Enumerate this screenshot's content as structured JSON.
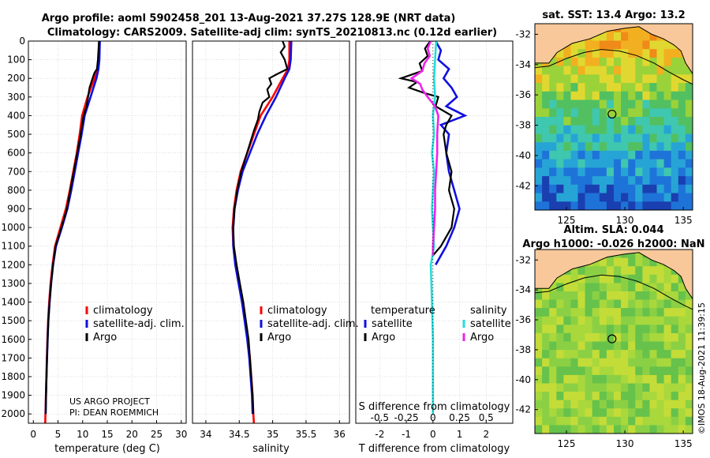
{
  "header": {
    "title_line1": "Argo profile: aoml 5902458_201 13-Aug-2021 37.27S 128.9E (NRT data)",
    "title_line2": "Climatology: CARS2009. Satellite-adj clim: synTS_20210813.nc (0.12d earlier)"
  },
  "credits": {
    "project": "US ARGO PROJECT",
    "pi": "PI: DEAN ROEMMICH",
    "imos_stamp": "©IMOS 18-Aug-2021 11:39:15"
  },
  "colors": {
    "climatology": "#ff0000",
    "satellite": "#1010e0",
    "argo": "#000000",
    "sat_salinity": "#22dddd",
    "argo_salinity": "#ee22ee",
    "land": "#f8c89a"
  },
  "chart_data": [
    {
      "id": "temperature",
      "type": "line",
      "xlabel": "temperature (deg C)",
      "ylabel": "",
      "xlim": [
        -1,
        31
      ],
      "xticks": [
        "0",
        "5",
        "10",
        "15",
        "20",
        "25",
        "30"
      ],
      "xtick_values": [
        0,
        5,
        10,
        15,
        20,
        25,
        30
      ],
      "ylim": [
        0,
        2050
      ],
      "yticks": [
        "0",
        "100",
        "200",
        "300",
        "400",
        "500",
        "600",
        "700",
        "800",
        "900",
        "1000",
        "1100",
        "1200",
        "1300",
        "1400",
        "1500",
        "1600",
        "1700",
        "1800",
        "1900",
        "2000"
      ],
      "ytick_values": [
        0,
        100,
        200,
        300,
        400,
        500,
        600,
        700,
        800,
        900,
        1000,
        1100,
        1200,
        1300,
        1400,
        1500,
        1600,
        1700,
        1800,
        1900,
        2000
      ],
      "legend": [
        "climatology",
        "satellite-adj. clim.",
        "Argo"
      ],
      "series": [
        {
          "name": "climatology",
          "color_key": "climatology",
          "depth": [
            0,
            100,
            150,
            200,
            300,
            400,
            500,
            600,
            700,
            800,
            900,
            1000,
            1100,
            1200,
            1300,
            1400,
            1500,
            1600,
            1700,
            1800,
            1900,
            2000,
            2050
          ],
          "values": [
            13.4,
            13.3,
            13.0,
            12.4,
            11.0,
            9.9,
            9.4,
            8.8,
            8.1,
            7.4,
            6.6,
            5.5,
            4.4,
            3.9,
            3.5,
            3.2,
            3.0,
            2.85,
            2.75,
            2.65,
            2.55,
            2.45,
            2.4
          ]
        },
        {
          "name": "satellite-adj. clim.",
          "color_key": "satellite",
          "depth": [
            0,
            100,
            150,
            200,
            300,
            400,
            500,
            600,
            700,
            800,
            900,
            1000,
            1100,
            1200,
            1300,
            1400,
            1500,
            1600,
            1700,
            1800,
            1900,
            2000
          ],
          "values": [
            13.5,
            13.4,
            13.2,
            12.8,
            11.6,
            10.4,
            9.8,
            9.1,
            8.4,
            7.7,
            6.9,
            5.8,
            4.6,
            4.0,
            3.6,
            3.3,
            3.05,
            2.9,
            2.78,
            2.67,
            2.57,
            2.5
          ]
        },
        {
          "name": "Argo",
          "color_key": "argo",
          "depth": [
            0,
            50,
            100,
            150,
            170,
            200,
            250,
            300,
            350,
            400,
            500,
            600,
            700,
            800,
            900,
            1000,
            1100,
            1200,
            1300,
            1400,
            1500,
            1600,
            1700,
            1800,
            1900,
            2000
          ],
          "values": [
            13.3,
            13.2,
            13.1,
            12.9,
            12.4,
            12.0,
            11.4,
            11.1,
            10.8,
            10.2,
            9.6,
            8.9,
            8.2,
            7.5,
            6.8,
            5.7,
            4.5,
            4.0,
            3.6,
            3.3,
            3.05,
            2.9,
            2.78,
            2.68,
            2.58,
            2.5
          ]
        }
      ]
    },
    {
      "id": "salinity",
      "type": "line",
      "xlabel": "salinity",
      "ylabel": "",
      "xlim": [
        33.8,
        36.15
      ],
      "xticks": [
        "34",
        "34.5",
        "35",
        "35.5",
        "36"
      ],
      "xtick_values": [
        34,
        34.5,
        35,
        35.5,
        36
      ],
      "ylim": [
        0,
        2050
      ],
      "legend": [
        "climatology",
        "satellite-adj. clim.",
        "Argo"
      ],
      "series": [
        {
          "name": "climatology",
          "color_key": "climatology",
          "depth": [
            0,
            100,
            150,
            200,
            300,
            400,
            500,
            600,
            700,
            800,
            900,
            1000,
            1100,
            1200,
            1300,
            1400,
            1500,
            1600,
            1700,
            1800,
            1900,
            2000,
            2050
          ],
          "values": [
            35.25,
            35.25,
            35.23,
            35.15,
            35.0,
            34.82,
            34.72,
            34.62,
            34.52,
            34.46,
            34.42,
            34.4,
            34.41,
            34.45,
            34.5,
            34.55,
            34.59,
            34.63,
            34.66,
            34.68,
            34.7,
            34.71,
            34.72
          ]
        },
        {
          "name": "satellite-adj. clim.",
          "color_key": "satellite",
          "depth": [
            0,
            100,
            150,
            200,
            300,
            400,
            500,
            600,
            700,
            800,
            900,
            1000,
            1100,
            1200,
            1300,
            1400,
            1500,
            1600,
            1700,
            1800,
            1900,
            2000
          ],
          "values": [
            35.28,
            35.27,
            35.25,
            35.18,
            35.05,
            34.9,
            34.77,
            34.66,
            34.55,
            34.48,
            34.43,
            34.41,
            34.41,
            34.44,
            34.49,
            34.54,
            34.58,
            34.62,
            34.65,
            34.67,
            34.69,
            34.7
          ]
        },
        {
          "name": "Argo",
          "color_key": "argo",
          "depth": [
            0,
            30,
            60,
            100,
            150,
            180,
            200,
            230,
            260,
            300,
            330,
            380,
            420,
            480,
            550,
            620,
            700,
            800,
            900,
            1000,
            1100,
            1200,
            1300,
            1400,
            1500,
            1600,
            1700,
            1800,
            1900,
            2000
          ],
          "values": [
            35.15,
            35.18,
            35.12,
            35.18,
            35.22,
            35.05,
            34.95,
            34.98,
            34.92,
            34.95,
            34.85,
            34.8,
            34.78,
            34.72,
            34.66,
            34.6,
            34.53,
            34.47,
            34.43,
            34.41,
            34.42,
            34.46,
            34.51,
            34.56,
            34.6,
            34.64,
            34.66,
            34.68,
            34.7,
            34.71
          ]
        }
      ]
    },
    {
      "id": "difference",
      "type": "line",
      "xlabel": "T difference from climatology",
      "xlabel_top": "S difference from climatology",
      "xlim": [
        -2.9,
        3.0
      ],
      "xticks": [
        "-2",
        "-1",
        "0",
        "1",
        "2"
      ],
      "xtick_values": [
        -2,
        -1,
        0,
        1,
        2
      ],
      "s_ticks": [
        "-0.5",
        "-0.25",
        "0",
        "0.25",
        "0.5"
      ],
      "s_tick_values": [
        -0.5,
        -0.25,
        0,
        0.25,
        0.5
      ],
      "s_scale": 0.25,
      "ylim": [
        0,
        2050
      ],
      "legend_temperature_title": "temperature",
      "legend_salinity_title": "salinity",
      "legend_temperature": [
        "satellite",
        "Argo"
      ],
      "legend_salinity": [
        "satellite",
        "Argo"
      ],
      "series": [
        {
          "name": "T satellite",
          "color_key": "satellite",
          "depth": [
            0,
            50,
            100,
            150,
            200,
            250,
            300,
            350,
            400,
            450,
            500,
            600,
            700,
            800,
            900,
            1000,
            1100,
            1200
          ],
          "values": [
            0.1,
            0.3,
            0.2,
            0.6,
            0.4,
            0.7,
            0.9,
            0.5,
            1.2,
            0.3,
            0.6,
            0.5,
            0.6,
            0.8,
            1.0,
            0.8,
            0.5,
            0.1
          ]
        },
        {
          "name": "T Argo",
          "color_key": "argo",
          "depth": [
            0,
            40,
            80,
            120,
            160,
            200,
            220,
            250,
            280,
            300,
            350,
            400,
            450,
            500,
            600,
            700,
            800,
            900,
            1000,
            1100,
            1150
          ],
          "values": [
            -0.1,
            -0.3,
            -0.2,
            -0.5,
            -0.4,
            -1.2,
            -0.6,
            -0.9,
            -0.3,
            0.2,
            0.1,
            0.7,
            0.5,
            0.4,
            0.5,
            0.7,
            0.6,
            0.8,
            0.7,
            0.3,
            0.0
          ]
        },
        {
          "name": "S satellite",
          "color_key": "sat_salinity",
          "depth": [
            0,
            100,
            200,
            300,
            400,
            500,
            600,
            700,
            800,
            900,
            1000,
            1100,
            1200,
            1400,
            1600,
            1800,
            2000
          ],
          "values": [
            0.03,
            0.02,
            0.01,
            0.02,
            0.0,
            0.01,
            -0.01,
            0.01,
            0.0,
            -0.01,
            0.0,
            0.01,
            -0.02,
            -0.01,
            0.0,
            0.0,
            0.0
          ]
        },
        {
          "name": "S Argo",
          "color_key": "argo_salinity",
          "depth": [
            0,
            40,
            80,
            120,
            160,
            200,
            230,
            260,
            300,
            350,
            400,
            500,
            600,
            700,
            800,
            900,
            1000,
            1100,
            1150
          ],
          "values": [
            -0.02,
            -0.05,
            -0.03,
            -0.08,
            -0.1,
            -0.2,
            -0.12,
            -0.1,
            -0.05,
            0.02,
            0.05,
            0.04,
            0.04,
            0.03,
            0.02,
            0.02,
            0.01,
            0.0,
            0.0
          ]
        }
      ]
    },
    {
      "id": "sst_map",
      "type": "heatmap",
      "title": "sat. SST: 13.4 Argo: 13.2",
      "xticks": [
        "125",
        "130",
        "135"
      ],
      "xtick_values": [
        125,
        130,
        135
      ],
      "yticks": [
        "-32",
        "-34",
        "-36",
        "-38",
        "-40",
        "-42"
      ],
      "ytick_values": [
        -32,
        -34,
        -36,
        -38,
        -40,
        -42
      ],
      "xlim": [
        122.3,
        135.8
      ],
      "ylim": [
        -43.6,
        -31.3
      ],
      "profile_lon": 128.9,
      "profile_lat": -37.27
    },
    {
      "id": "sla_map",
      "type": "heatmap",
      "title_line1": "Altim. SLA: 0.044",
      "title_line2": "Argo h1000: -0.026 h2000: NaN",
      "xticks": [
        "125",
        "130",
        "135"
      ],
      "xtick_values": [
        125,
        130,
        135
      ],
      "yticks": [
        "-32",
        "-34",
        "-36",
        "-38",
        "-40",
        "-42"
      ],
      "ytick_values": [
        -32,
        -34,
        -36,
        -38,
        -40,
        -42
      ],
      "xlim": [
        122.3,
        135.8
      ],
      "ylim": [
        -43.6,
        -31.3
      ],
      "profile_lon": 128.9,
      "profile_lat": -37.27
    }
  ]
}
